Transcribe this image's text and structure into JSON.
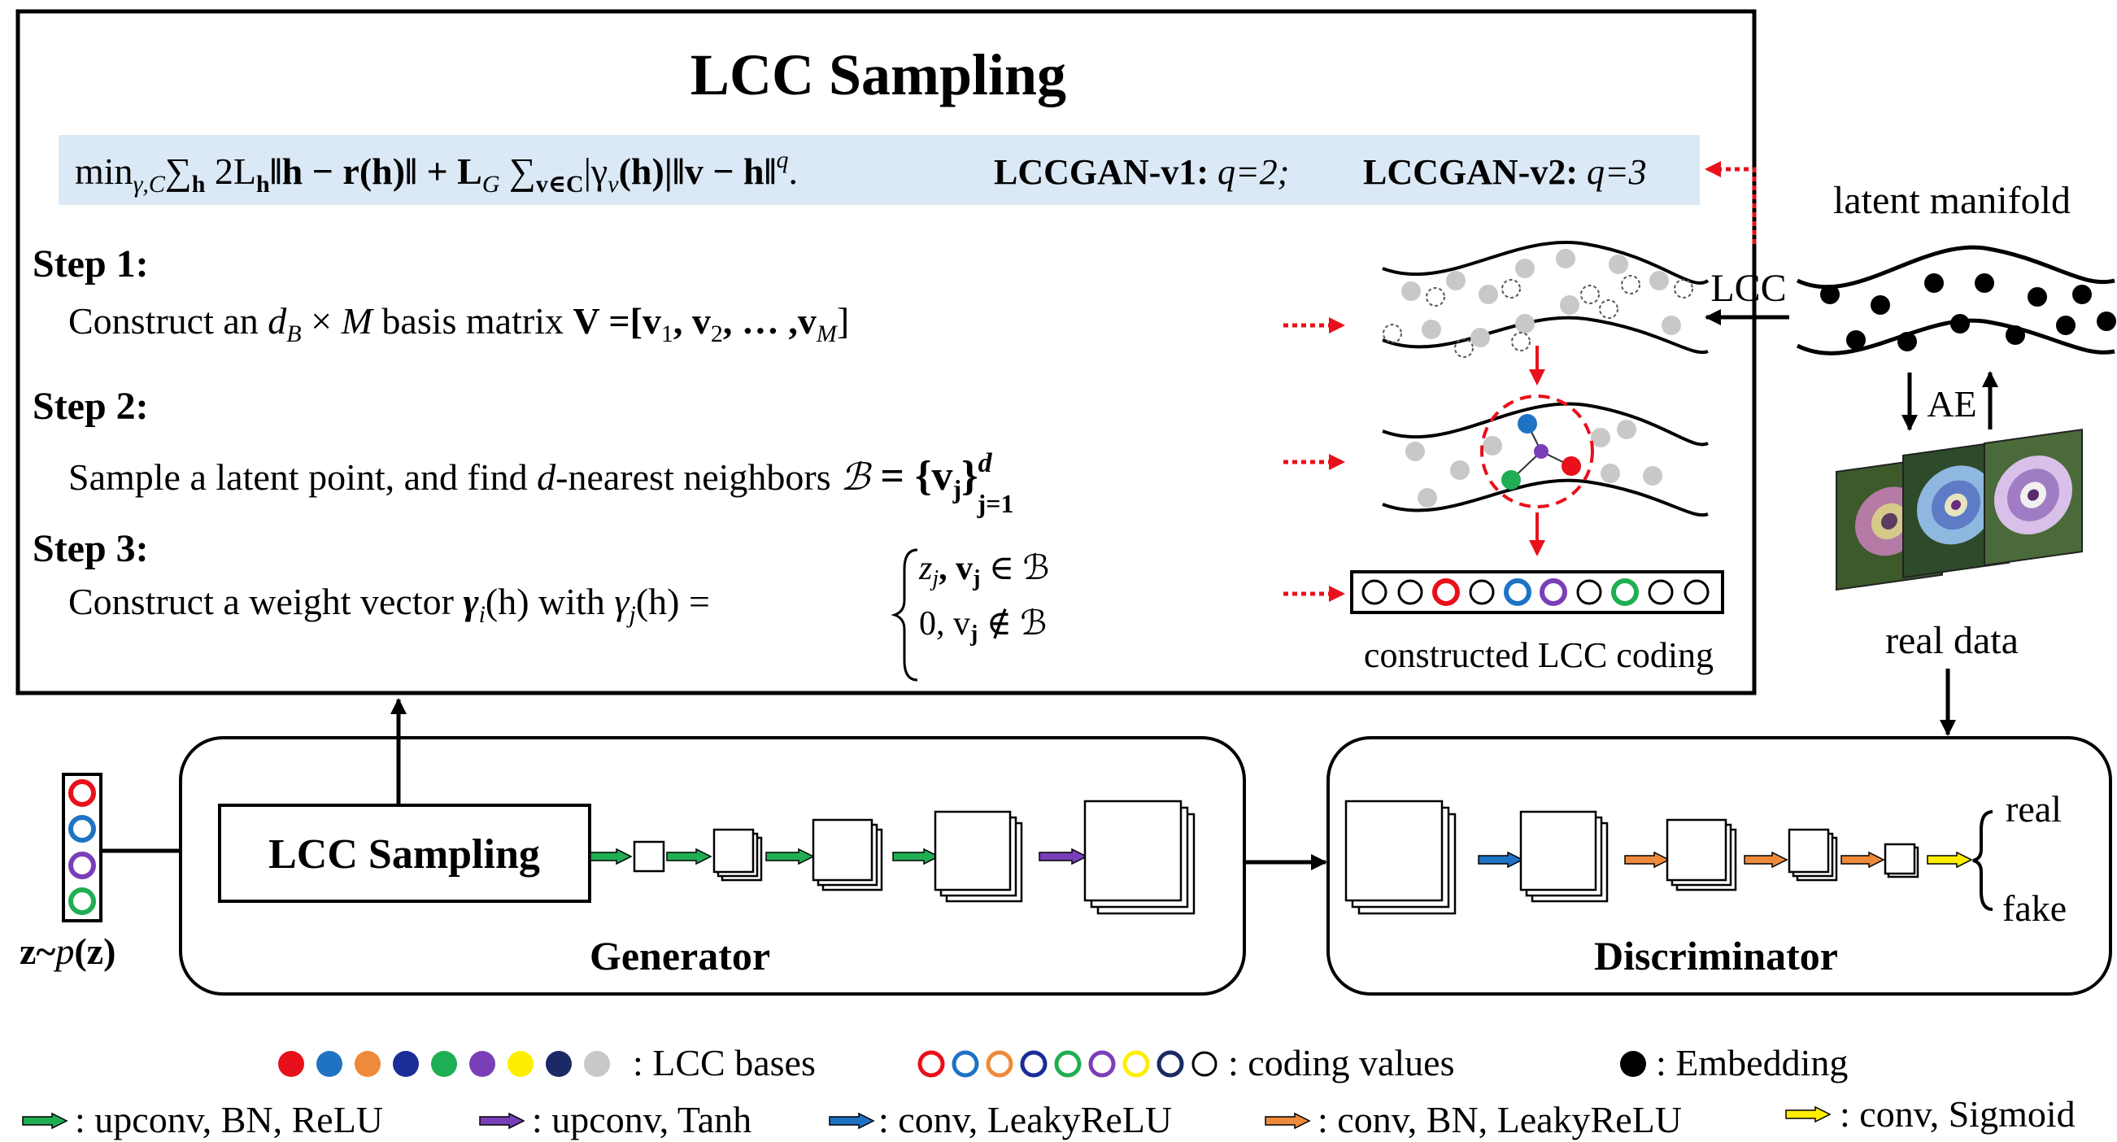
{
  "top_box": {
    "title": "LCC Sampling",
    "formula": {
      "min_text": "min",
      "min_sub": "γ,C",
      "sum1": "∑",
      "sum1_sub": "h",
      "term1": " 2L",
      "term1_sub": "h",
      "term2": "‖h − r(h)‖ + L",
      "term2_sub": "G",
      "sum2": " ∑",
      "sum2_sub": "v∈C",
      "term3": "|γ",
      "term3_sub": "v",
      "term4": "(h)|‖v − h‖",
      "term4_sup": "q",
      "term5": ".",
      "v1_label": "LCCGAN-v1:",
      "v1_val": " q=2;",
      "v2_label": "LCCGAN-v2:",
      "v2_val": " q=3"
    },
    "step1": {
      "label": "Step 1:",
      "desc_a": "Construct an ",
      "desc_dB": "d",
      "desc_dB_sub": "B",
      "desc_b": " × ",
      "desc_M": "M",
      "desc_c": " basis matrix ",
      "desc_V": "V",
      "desc_d": " =[v",
      "desc_s1": "1",
      "desc_e": ", v",
      "desc_s2": "2",
      "desc_f": ", … ,v",
      "desc_sM": "M",
      "desc_g": "]"
    },
    "step2": {
      "label": "Step 2:",
      "desc_a": "Sample a  latent  point, and find  ",
      "desc_d": "d",
      "desc_b": "-nearest neighbors ",
      "desc_B": "ℬ",
      "desc_c": " = {v",
      "desc_j": "j",
      "desc_e": "}",
      "desc_sup": "d",
      "desc_sub": "j=1"
    },
    "step3": {
      "label": "Step 3:",
      "desc_a": "Construct a weight vector ",
      "desc_gamma": "γ",
      "desc_i": "i",
      "desc_b": "(h) with  ",
      "desc_gj": "γ",
      "desc_gj_sub": "j",
      "desc_c": "(h) = ",
      "case1_z": "z",
      "case1_zsub": "j",
      "case1_rest": ", v",
      "case1_vsub": "j",
      "case1_end": " ∈ ℬ",
      "case2_a": "0, v",
      "case2_vsub": "j",
      "case2_end": " ∉ ℬ"
    },
    "coding_label": "constructed LCC coding"
  },
  "right": {
    "latent_manifold": "latent manifold",
    "lcc": "LCC",
    "ae": "AE",
    "real_data": "real data"
  },
  "bottom": {
    "z_label_a": "z~",
    "z_label_p": "p",
    "z_label_b": "(z)",
    "lcc_sampling": "LCC Sampling",
    "generator": "Generator",
    "discriminator": "Discriminator",
    "real": "real",
    "fake": "fake"
  },
  "legend": {
    "lcc_bases": ": LCC bases",
    "coding_values": ": coding values",
    "embedding": ": Embedding",
    "upconv_bn_relu": ": upconv, BN, ReLU",
    "upconv_tanh": ": upconv, Tanh",
    "conv_leaky": ": conv, LeakyReLU",
    "conv_bn_leaky": ": conv, BN, LeakyReLU",
    "conv_sigmoid": ": conv, Sigmoid"
  },
  "colors": {
    "red": "#e8101a",
    "blue": "#1f73c4",
    "orange": "#ee8a3c",
    "navy": "#1c2c98",
    "green": "#1fae52",
    "purple": "#7a3fb8",
    "yellow": "#ffee00",
    "darknavy": "#1b2a66",
    "gray": "#c8c8c8",
    "formula_bg": "#dbe8f5",
    "arrow_red": "#e8101a"
  },
  "base_colors_order": [
    "red",
    "blue",
    "orange",
    "navy",
    "green",
    "purple",
    "yellow",
    "darknavy",
    "gray"
  ],
  "coding_ring_order": [
    "none",
    "none",
    "red",
    "none",
    "blue",
    "purple",
    "none",
    "green",
    "none",
    "none"
  ]
}
